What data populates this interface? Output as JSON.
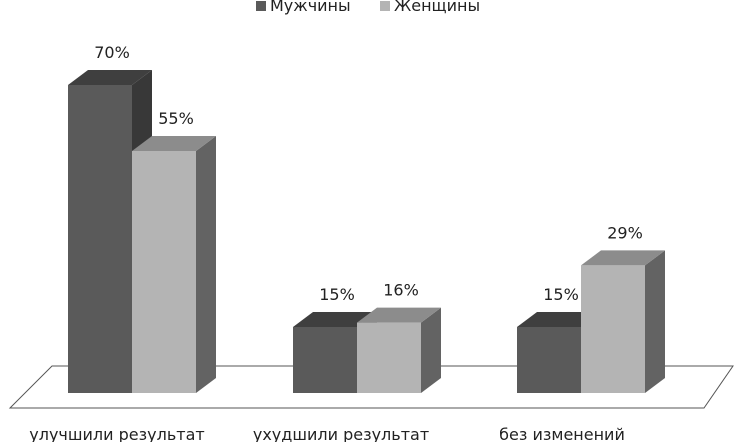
{
  "chart_data": {
    "type": "bar",
    "style": "3d-clustered-column",
    "categories": [
      "улучшили результат",
      "ухудшили результат",
      "без изменений"
    ],
    "series": [
      {
        "name": "Мужчины",
        "values": [
          70,
          15,
          15
        ],
        "color": "#5a5a5a"
      },
      {
        "name": "Женщины",
        "values": [
          55,
          16,
          29
        ],
        "color": "#b4b4b4"
      }
    ],
    "value_labels": [
      [
        "70%",
        "15%",
        "15%"
      ],
      [
        "55%",
        "16%",
        "29%"
      ]
    ],
    "unit": "%",
    "ylim": [
      0,
      100
    ],
    "grid": false,
    "legend_position": "top-center"
  }
}
